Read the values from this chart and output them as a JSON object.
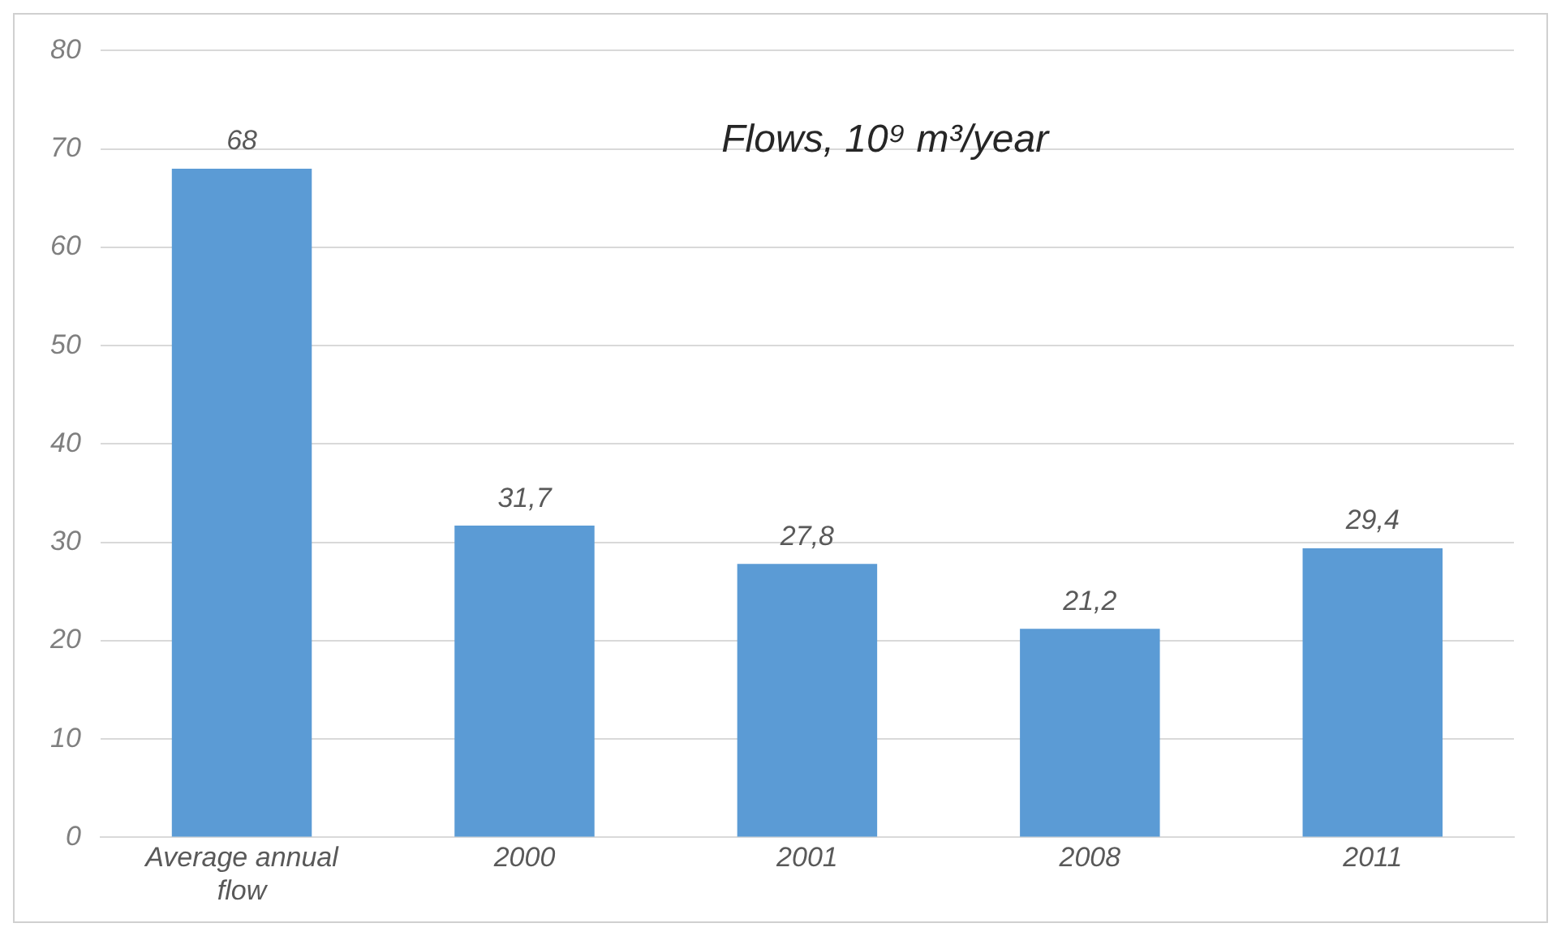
{
  "chart_data": {
    "type": "bar",
    "title": "Flows, 10⁹ m³/year",
    "categories": [
      "Average annual flow",
      "2000",
      "2001",
      "2008",
      "2011"
    ],
    "values": [
      68,
      31.7,
      27.8,
      21.2,
      29.4
    ],
    "value_labels": [
      "68",
      "31,7",
      "27,8",
      "21,2",
      "29,4"
    ],
    "color": "#5b9bd5",
    "ylim": [
      0,
      80
    ],
    "yticks": [
      0,
      10,
      20,
      30,
      40,
      50,
      60,
      70,
      80
    ],
    "grid": "y",
    "legend": false
  }
}
